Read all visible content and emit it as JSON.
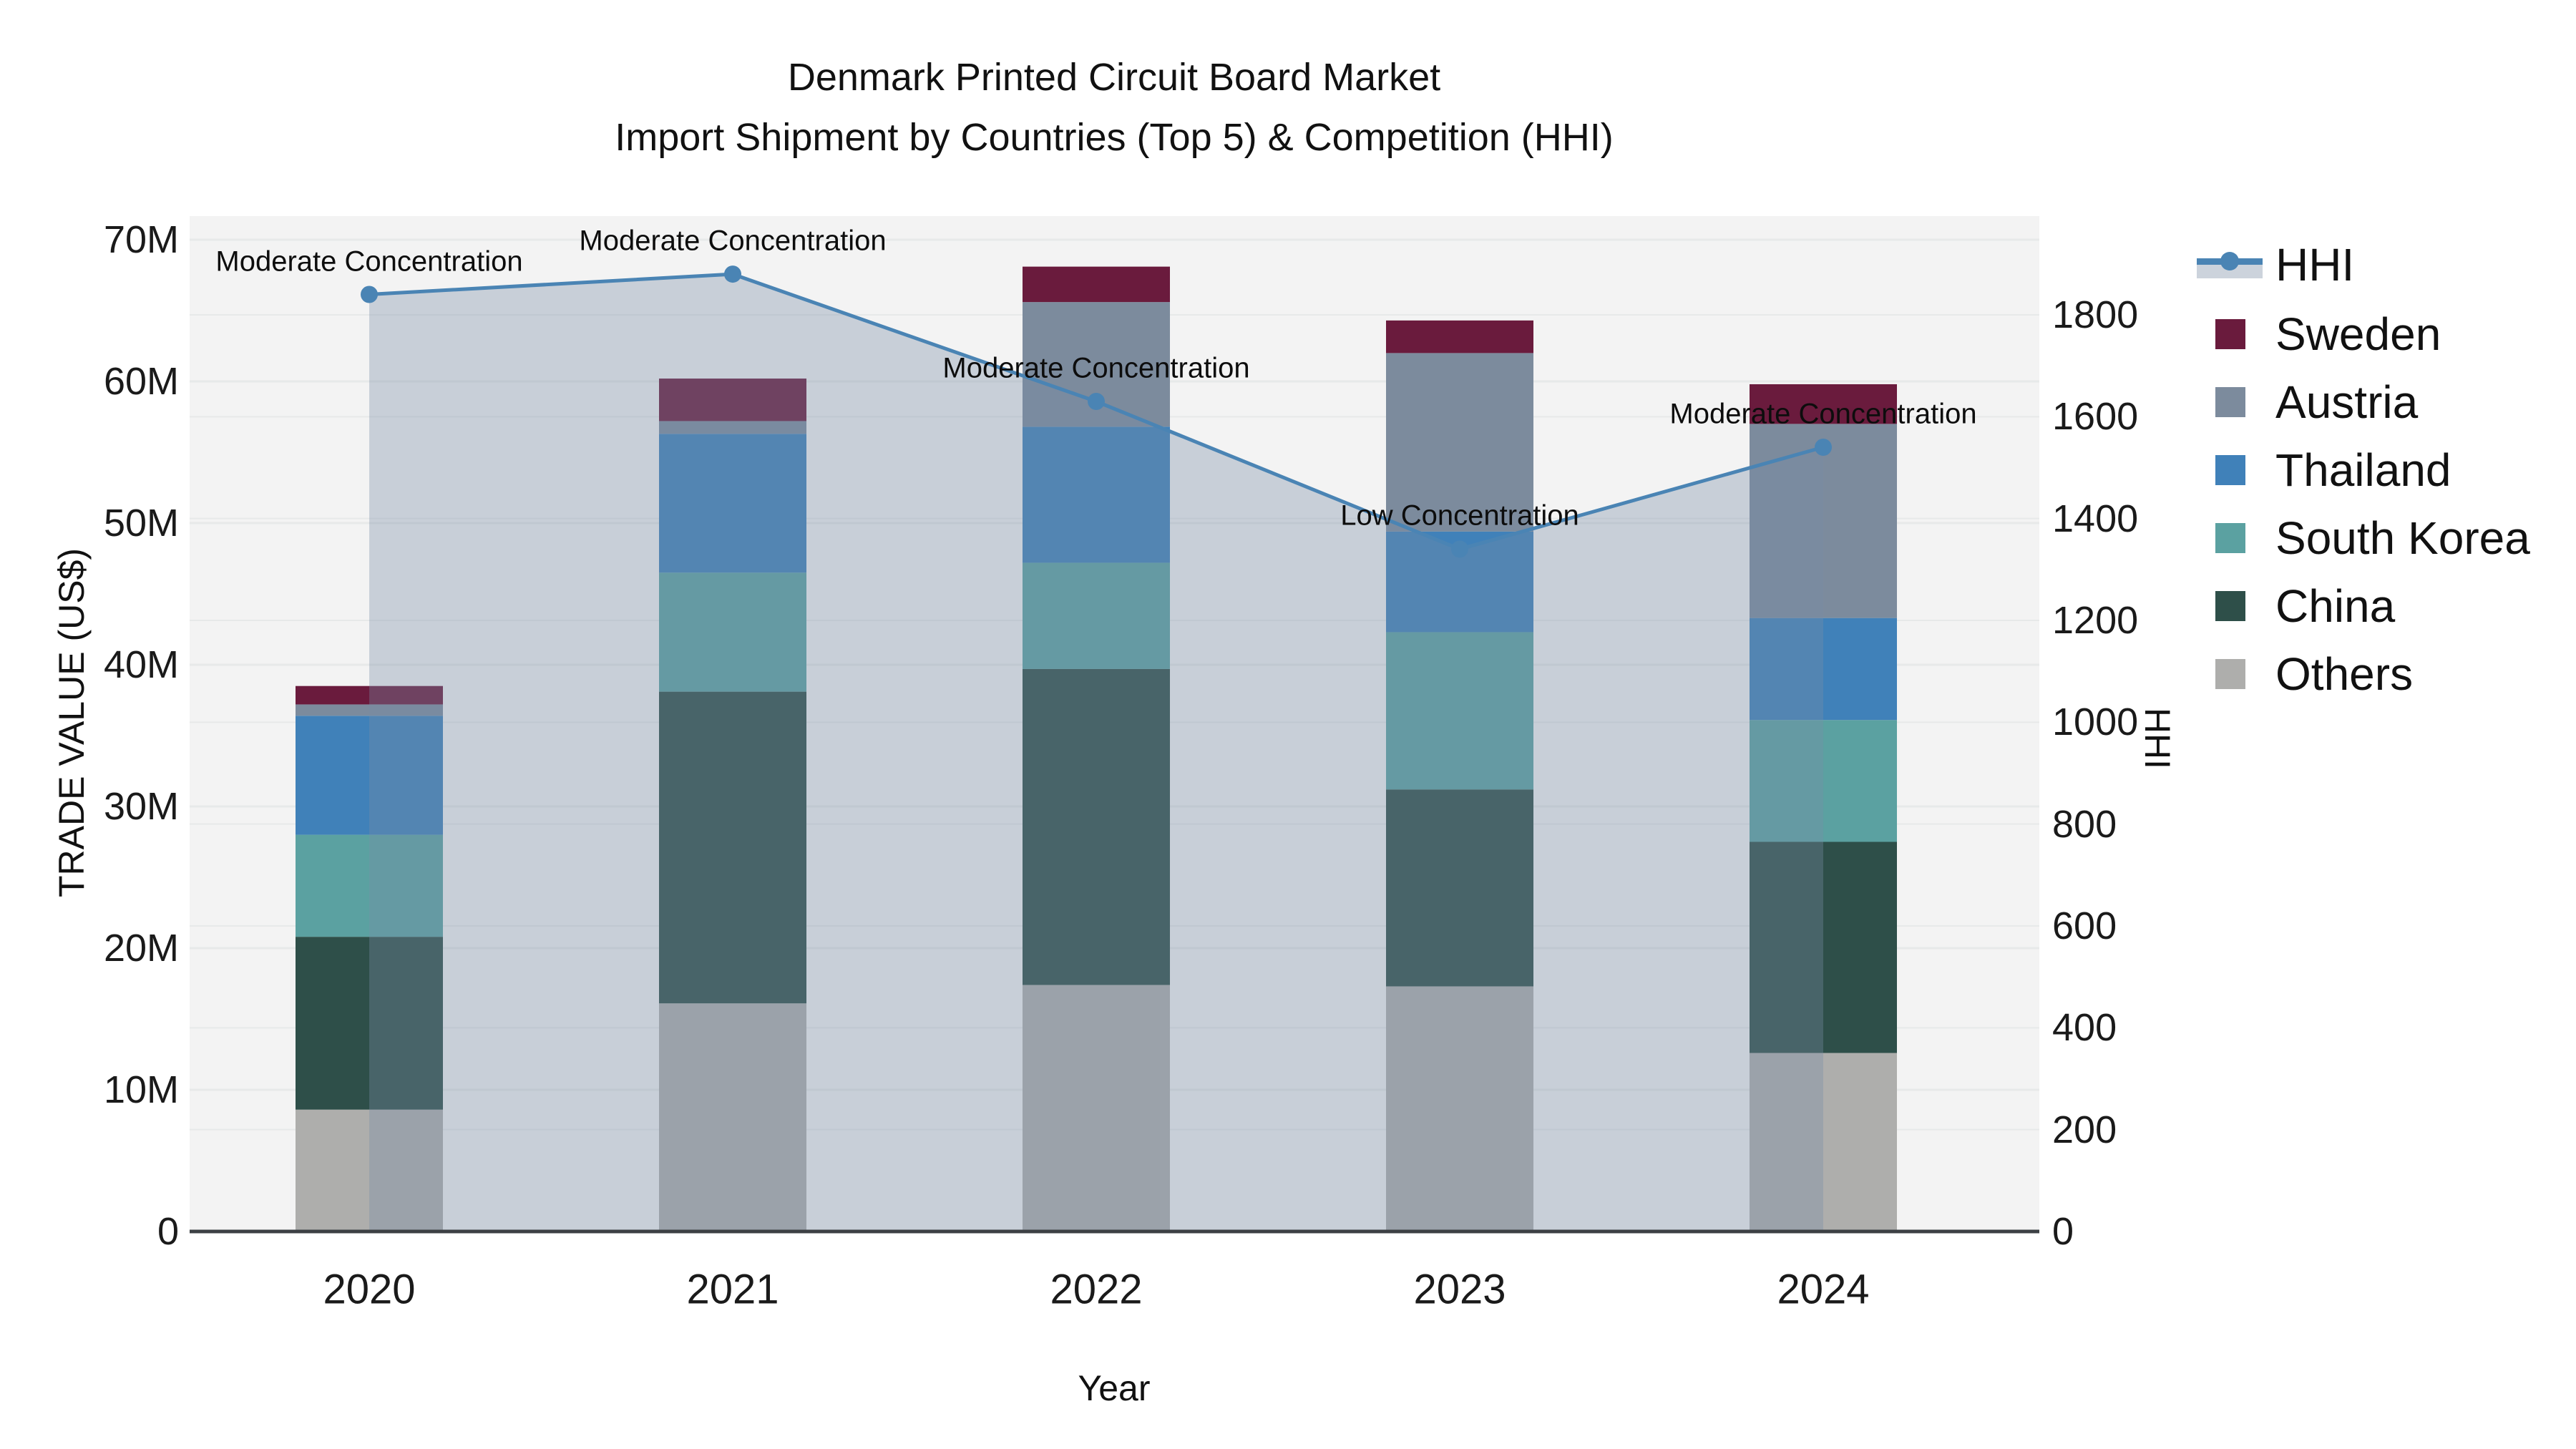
{
  "title": {
    "line1": "Denmark Printed Circuit Board Market",
    "line2": "Import Shipment by Countries (Top 5) & Competition (HHI)"
  },
  "axes": {
    "left_title": "TRADE VALUE (US$)",
    "right_title": "HHI",
    "x_title": "Year",
    "left_ticks": [
      {
        "label": "0",
        "value": 0
      },
      {
        "label": "10M",
        "value": 10
      },
      {
        "label": "20M",
        "value": 20
      },
      {
        "label": "30M",
        "value": 30
      },
      {
        "label": "40M",
        "value": 40
      },
      {
        "label": "50M",
        "value": 50
      },
      {
        "label": "60M",
        "value": 60
      },
      {
        "label": "70M",
        "value": 70
      }
    ],
    "right_ticks": [
      {
        "label": "0",
        "value": 0
      },
      {
        "label": "200",
        "value": 200
      },
      {
        "label": "400",
        "value": 400
      },
      {
        "label": "600",
        "value": 600
      },
      {
        "label": "800",
        "value": 800
      },
      {
        "label": "1000",
        "value": 1000
      },
      {
        "label": "1200",
        "value": 1200
      },
      {
        "label": "1400",
        "value": 1400
      },
      {
        "label": "1600",
        "value": 1600
      },
      {
        "label": "1800",
        "value": 1800
      }
    ]
  },
  "legend": [
    {
      "label": "HHI",
      "type": "line",
      "color": "#4a84b4"
    },
    {
      "label": "Sweden",
      "type": "rect",
      "color": "#6a1b3d"
    },
    {
      "label": "Austria",
      "type": "rect",
      "color": "#7c8b9d"
    },
    {
      "label": "Thailand",
      "type": "rect",
      "color": "#4081b9"
    },
    {
      "label": "South Korea",
      "type": "rect",
      "color": "#5ba1a1"
    },
    {
      "label": "China",
      "type": "rect",
      "color": "#2e4f49"
    },
    {
      "label": "Others",
      "type": "rect",
      "color": "#aeaeac"
    }
  ],
  "chart_data": {
    "type": "bar+line",
    "title": "Denmark Printed Circuit Board Market — Import Shipment by Countries (Top 5) & Competition (HHI)",
    "categories": [
      "2020",
      "2021",
      "2022",
      "2023",
      "2024"
    ],
    "stack_order_note": "series stacked bottom-to-top",
    "series": [
      {
        "name": "Others",
        "color": "#aeaeac",
        "values_musd": [
          8.6,
          16.1,
          17.4,
          17.3,
          12.6
        ]
      },
      {
        "name": "China",
        "color": "#2e4f49",
        "values_musd": [
          12.2,
          22.0,
          22.3,
          13.9,
          14.9
        ]
      },
      {
        "name": "South Korea",
        "color": "#5ba1a1",
        "values_musd": [
          7.2,
          8.4,
          7.5,
          11.1,
          8.6
        ]
      },
      {
        "name": "Thailand",
        "color": "#4081b9",
        "values_musd": [
          8.4,
          9.8,
          9.6,
          7.1,
          7.2
        ]
      },
      {
        "name": "Austria",
        "color": "#7c8b9d",
        "values_musd": [
          0.8,
          0.9,
          8.8,
          12.6,
          13.7
        ]
      },
      {
        "name": "Sweden",
        "color": "#6a1b3d",
        "values_musd": [
          1.3,
          3.0,
          2.5,
          2.3,
          2.8
        ]
      }
    ],
    "bar_totals_musd": [
      38.5,
      60.2,
      68.1,
      64.3,
      59.8
    ],
    "line_series": {
      "name": "HHI",
      "color": "#4a84b4",
      "area_fill": "rgba(120,140,165,0.35)",
      "values": [
        1840,
        1880,
        1630,
        1340,
        1540
      ]
    },
    "annotations": [
      {
        "text": "Moderate Concentration",
        "category": "2020"
      },
      {
        "text": "Moderate Concentration",
        "category": "2021"
      },
      {
        "text": "Moderate Concentration",
        "category": "2022"
      },
      {
        "text": "Low Concentration",
        "category": "2023"
      },
      {
        "text": "Moderate Concentration",
        "category": "2024"
      }
    ],
    "xlabel": "Year",
    "ylabel_left": "TRADE VALUE (US$)",
    "ylabel_right": "HHI",
    "ylim_left_musd": [
      0,
      71.7
    ],
    "ylim_right": [
      0,
      1995
    ],
    "grid": true,
    "legend_position": "right",
    "plot_bg": "#f3f3f3",
    "grid_color": "#e7e9e9"
  }
}
